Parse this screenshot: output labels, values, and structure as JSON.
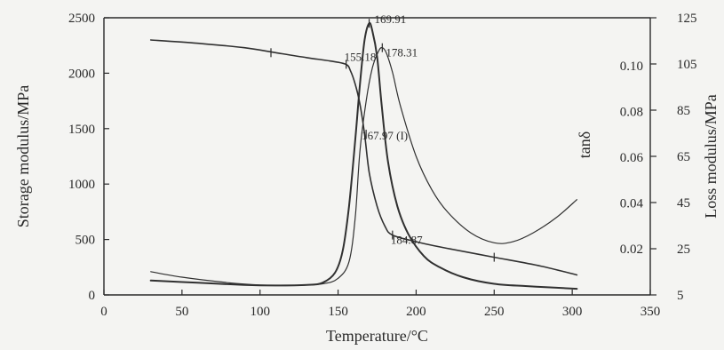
{
  "chart_data": {
    "type": "line",
    "xlabel": "Temperature/°C",
    "ylabel_left": "Storage modulus/MPa",
    "ylabel_inner": "tanδ",
    "ylabel_right": "Loss modulus/MPa",
    "xlim": [
      0,
      350
    ],
    "xticks": [
      "0",
      "50",
      "100",
      "150",
      "200",
      "250",
      "300",
      "350"
    ],
    "ylim_left": [
      0,
      2500
    ],
    "yticks_left": [
      "0",
      "500",
      "1000",
      "1500",
      "2000",
      "2500"
    ],
    "yticks_inner": [
      "0.02",
      "0.04",
      "0.06",
      "0.08",
      "0.10"
    ],
    "yticks_right": [
      "5",
      "25",
      "45",
      "65",
      "85",
      "105",
      "125"
    ],
    "series": [
      {
        "axis": "left",
        "width": 1.6,
        "x": [
          30,
          60,
          90,
          110,
          130,
          145,
          155,
          158,
          161,
          164,
          167,
          170,
          175,
          180,
          184.87,
          200,
          220,
          250,
          280,
          303
        ],
        "y": [
          2300,
          2270,
          2230,
          2185,
          2140,
          2110,
          2080,
          2020,
          1900,
          1720,
          1450,
          1100,
          800,
          620,
          540,
          480,
          420,
          340,
          260,
          180
        ]
      },
      {
        "axis": "left",
        "width": 2.0,
        "x": [
          30,
          60,
          90,
          110,
          130,
          140,
          148,
          153,
          157,
          161,
          164,
          167,
          169.91,
          172,
          175,
          178,
          182,
          188,
          195,
          205,
          215,
          230,
          250,
          270,
          290,
          303
        ],
        "y": [
          130,
          110,
          90,
          85,
          90,
          110,
          200,
          400,
          800,
          1400,
          1900,
          2300,
          2450,
          2380,
          2150,
          1700,
          1200,
          800,
          550,
          350,
          250,
          160,
          100,
          80,
          65,
          55
        ]
      },
      {
        "axis": "left",
        "width": 1.2,
        "x": [
          30,
          50,
          80,
          100,
          120,
          140,
          150,
          157,
          161,
          164,
          168,
          172,
          176,
          178.31,
          181,
          185,
          190,
          200,
          210,
          220,
          235,
          250,
          262,
          275,
          290,
          303
        ],
        "y": [
          210,
          160,
          110,
          90,
          85,
          100,
          150,
          300,
          700,
          1300,
          1750,
          2050,
          2200,
          2230,
          2180,
          2000,
          1700,
          1250,
          950,
          750,
          560,
          470,
          480,
          560,
          700,
          860
        ]
      }
    ],
    "annotations": [
      {
        "text": "169.91",
        "x": 169.91,
        "y": 2450
      },
      {
        "text": "178.31",
        "x": 178.31,
        "y": 2230
      },
      {
        "text": "155.18",
        "x": 155.18,
        "y": 2080
      },
      {
        "text": "167.97 (I)",
        "x": 167.97,
        "y": 1450
      },
      {
        "text": "184.87",
        "x": 184.87,
        "y": 540
      }
    ],
    "grid": false
  }
}
